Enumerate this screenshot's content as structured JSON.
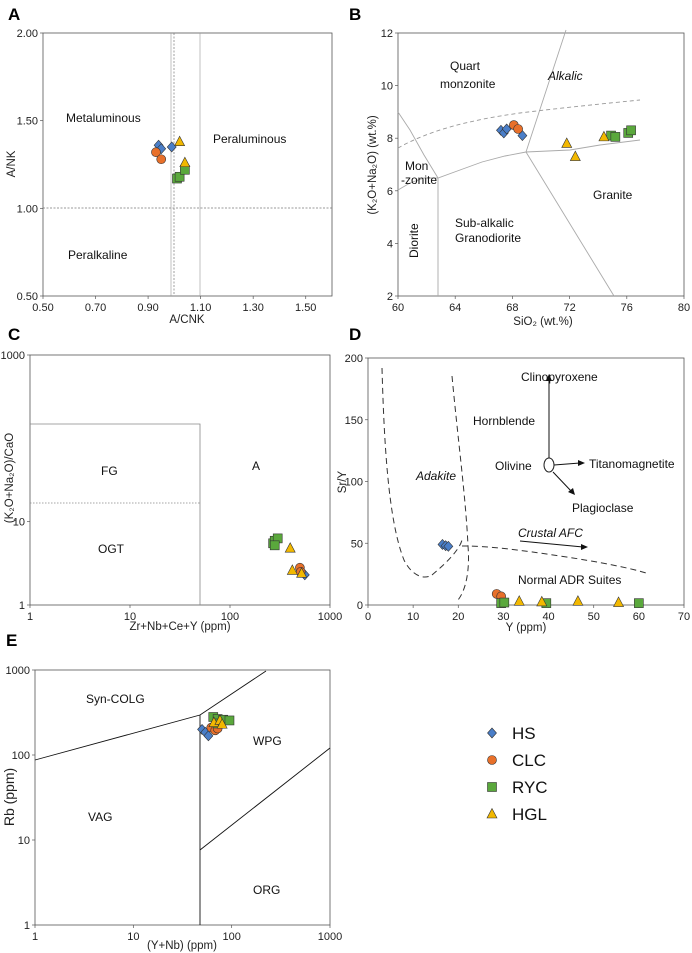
{
  "colors": {
    "HS": "#4a7ec8",
    "CLC": "#e8702a",
    "RYC": "#5aa83c",
    "HGL": "#f2b800"
  },
  "legend": [
    {
      "key": "HS",
      "label": "HS",
      "marker": "diamond"
    },
    {
      "key": "CLC",
      "label": "CLC",
      "marker": "circle"
    },
    {
      "key": "RYC",
      "label": "RYC",
      "marker": "square"
    },
    {
      "key": "HGL",
      "label": "HGL",
      "marker": "triangle"
    }
  ],
  "panels": {
    "A": {
      "letter": "A",
      "xlabel": "A/CNK",
      "ylabel": "A/NK",
      "regions": [
        "Metaluminous",
        "Peraluminous",
        "Peralkaline"
      ]
    },
    "B": {
      "letter": "B",
      "xlabel": "SiO₂ (wt.%)",
      "ylabel": "(K₂O+Na₂O) (wt.%)",
      "regions": [
        "Quart",
        "monzonite",
        "Alkalic",
        "Mon",
        "-zonite",
        "Diorite",
        "Sub-alkalic",
        "Granodiorite",
        "Granite"
      ]
    },
    "C": {
      "letter": "C",
      "xlabel": "Zr+Nb+Ce+Y (ppm)",
      "ylabel": "(K₂O+Na₂O)/CaO",
      "regions": [
        "FG",
        "OGT",
        "A"
      ]
    },
    "D": {
      "letter": "D",
      "xlabel": "Y (ppm)",
      "ylabel": "Sr/Y",
      "regions": [
        "Adakite",
        "Crustal AFC",
        "Normal ADR Suites",
        "Clinopyroxene",
        "Hornblende",
        "Olivine",
        "Titanomagnetite",
        "Plagioclase"
      ]
    },
    "E": {
      "letter": "E",
      "xlabel": "(Y+Nb) (ppm)",
      "ylabel": "Rb (ppm)",
      "regions": [
        "Syn-COLG",
        "WPG",
        "VAG",
        "ORG"
      ]
    }
  },
  "chart_data": [
    {
      "id": "A",
      "type": "scatter",
      "title": "",
      "xlabel": "A/CNK",
      "ylabel": "A/NK",
      "xlim": [
        0.5,
        1.6
      ],
      "ylim": [
        0.5,
        2.0
      ],
      "xticks": [
        "0.50",
        "0.70",
        "0.90",
        "1.10",
        "1.30",
        "1.50"
      ],
      "yticks": [
        "0.50",
        "1.00",
        "1.50",
        "2.00"
      ],
      "series": [
        {
          "name": "HS",
          "points": [
            [
              0.94,
              1.36
            ],
            [
              0.95,
              1.34
            ],
            [
              0.99,
              1.35
            ]
          ]
        },
        {
          "name": "CLC",
          "points": [
            [
              0.93,
              1.32
            ],
            [
              0.95,
              1.28
            ]
          ]
        },
        {
          "name": "RYC",
          "points": [
            [
              1.01,
              1.17
            ],
            [
              1.02,
              1.18
            ],
            [
              1.04,
              1.22
            ]
          ]
        },
        {
          "name": "HGL",
          "points": [
            [
              1.02,
              1.38
            ],
            [
              1.04,
              1.26
            ]
          ]
        }
      ]
    },
    {
      "id": "B",
      "type": "scatter",
      "title": "",
      "xlabel": "SiO₂ (wt.%)",
      "ylabel": "(K₂O+Na₂O) (wt.%)",
      "xlim": [
        60,
        80
      ],
      "ylim": [
        2,
        12
      ],
      "xticks": [
        "60",
        "64",
        "68",
        "72",
        "76",
        "80"
      ],
      "yticks": [
        "2",
        "4",
        "6",
        "8",
        "10",
        "12"
      ],
      "series": [
        {
          "name": "HS",
          "points": [
            [
              67.2,
              8.3
            ],
            [
              67.4,
              8.2
            ],
            [
              67.6,
              8.35
            ],
            [
              68.7,
              8.1
            ]
          ]
        },
        {
          "name": "CLC",
          "points": [
            [
              68.1,
              8.5
            ],
            [
              68.4,
              8.35
            ]
          ]
        },
        {
          "name": "RYC",
          "points": [
            [
              74.9,
              8.1
            ],
            [
              75.2,
              8.05
            ],
            [
              76.1,
              8.2
            ],
            [
              76.3,
              8.3
            ]
          ]
        },
        {
          "name": "HGL",
          "points": [
            [
              71.8,
              7.8
            ],
            [
              72.4,
              7.3
            ],
            [
              74.4,
              8.05
            ]
          ]
        }
      ]
    },
    {
      "id": "C",
      "type": "scatter",
      "title": "",
      "xlabel": "Zr+Nb+Ce+Y (ppm)",
      "ylabel": "(K₂O+Na₂O)/CaO",
      "xscale": "log",
      "yscale": "log",
      "xlim": [
        1,
        1000
      ],
      "ylim": [
        1,
        1000
      ],
      "xticks": [
        "1",
        "10",
        "100",
        "1000"
      ],
      "yticks": [
        "1",
        "10",
        "1000"
      ],
      "series": [
        {
          "name": "HS",
          "points": [
            [
              560,
              2.3
            ]
          ]
        },
        {
          "name": "CLC",
          "points": [
            [
              500,
              2.8
            ],
            [
              510,
              2.5
            ]
          ]
        },
        {
          "name": "RYC",
          "points": [
            [
              270,
              5.5
            ],
            [
              280,
              5.9
            ],
            [
              300,
              6.3
            ],
            [
              280,
              5.2
            ]
          ]
        },
        {
          "name": "HGL",
          "points": [
            [
              400,
              4.8
            ],
            [
              420,
              2.6
            ],
            [
              520,
              2.4
            ]
          ]
        }
      ]
    },
    {
      "id": "D",
      "type": "scatter",
      "title": "",
      "xlabel": "Y (ppm)",
      "ylabel": "Sr/Y",
      "xlim": [
        0,
        70
      ],
      "ylim": [
        0,
        200
      ],
      "xticks": [
        "0",
        "10",
        "20",
        "30",
        "40",
        "50",
        "60",
        "70"
      ],
      "yticks": [
        "0",
        "50",
        "100",
        "150",
        "200"
      ],
      "series": [
        {
          "name": "HS",
          "points": [
            [
              16.5,
              49
            ],
            [
              17.2,
              48
            ],
            [
              17.8,
              47.5
            ]
          ]
        },
        {
          "name": "CLC",
          "points": [
            [
              28.5,
              9
            ],
            [
              29.5,
              7
            ]
          ]
        },
        {
          "name": "RYC",
          "points": [
            [
              29.5,
              1.5
            ],
            [
              30.2,
              2
            ],
            [
              39.5,
              1.5
            ],
            [
              60,
              1.5
            ]
          ]
        },
        {
          "name": "HGL",
          "points": [
            [
              33.5,
              3
            ],
            [
              38.5,
              2.5
            ],
            [
              46.5,
              3
            ],
            [
              55.5,
              2
            ]
          ]
        }
      ]
    },
    {
      "id": "E",
      "type": "scatter",
      "title": "",
      "xlabel": "(Y+Nb) (ppm)",
      "ylabel": "Rb (ppm)",
      "xscale": "log",
      "yscale": "log",
      "xlim": [
        1,
        1000
      ],
      "ylim": [
        1,
        1000
      ],
      "xticks": [
        "1",
        "10",
        "100",
        "1000"
      ],
      "yticks": [
        "1",
        "10",
        "100",
        "1000"
      ],
      "series": [
        {
          "name": "HS",
          "points": [
            [
              50,
              200
            ],
            [
              54,
              185
            ],
            [
              58,
              168
            ]
          ]
        },
        {
          "name": "CLC",
          "points": [
            [
              62,
              210
            ],
            [
              68,
              195
            ],
            [
              72,
              205
            ]
          ]
        },
        {
          "name": "RYC",
          "points": [
            [
              65,
              280
            ],
            [
              72,
              265
            ],
            [
              82,
              260
            ],
            [
              95,
              255
            ],
            [
              72,
              235
            ]
          ]
        },
        {
          "name": "HGL",
          "points": [
            [
              66,
              240
            ],
            [
              76,
              255
            ],
            [
              80,
              230
            ]
          ]
        }
      ]
    }
  ]
}
